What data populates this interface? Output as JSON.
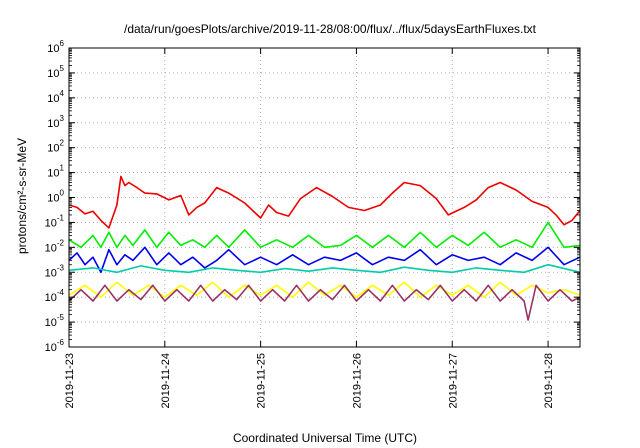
{
  "chart_data": {
    "type": "line",
    "title": "/data/run/goesPlots/archive/2019-11-28/08:00/flux/../flux/5daysEarthFluxes.txt",
    "xlabel": "Coordinated Universal Time (UTC)",
    "ylabel": "protons/cm²-s-sr-MeV",
    "yscale": "log",
    "ylim": [
      1e-06,
      1000000.0
    ],
    "ytick_exponents": [
      -6,
      -5,
      -4,
      -3,
      -2,
      -1,
      0,
      1,
      2,
      3,
      4,
      5,
      6
    ],
    "xlim": [
      "2019-11-23T00:00",
      "2019-11-28T08:00"
    ],
    "xticks": [
      {
        "t": "2019-11-23T00:00",
        "label": "2019-11-23"
      },
      {
        "t": "2019-11-24T00:00",
        "label": "2019-11-24"
      },
      {
        "t": "2019-11-25T00:00",
        "label": "2019-11-25"
      },
      {
        "t": "2019-11-26T00:00",
        "label": "2019-11-26"
      },
      {
        "t": "2019-11-27T00:00",
        "label": "2019-11-27"
      },
      {
        "t": "2019-11-28T00:00",
        "label": "2019-11-28"
      }
    ],
    "grid": true,
    "series": [
      {
        "color": "#ee0000",
        "x": [
          "2019-11-23T00:00",
          "2019-11-23T02:00",
          "2019-11-23T04:00",
          "2019-11-23T06:00",
          "2019-11-23T08:00",
          "2019-11-23T10:00",
          "2019-11-23T12:00",
          "2019-11-23T13:00",
          "2019-11-23T14:00",
          "2019-11-23T15:00",
          "2019-11-23T17:00",
          "2019-11-23T19:00",
          "2019-11-23T22:00",
          "2019-11-24T01:00",
          "2019-11-24T04:00",
          "2019-11-24T06:00",
          "2019-11-24T08:00",
          "2019-11-24T10:00",
          "2019-11-24T13:00",
          "2019-11-24T16:00",
          "2019-11-24T20:00",
          "2019-11-25T00:00",
          "2019-11-25T02:00",
          "2019-11-25T04:00",
          "2019-11-25T07:00",
          "2019-11-25T10:00",
          "2019-11-25T14:00",
          "2019-11-25T18:00",
          "2019-11-25T22:00",
          "2019-11-26T02:00",
          "2019-11-26T06:00",
          "2019-11-26T09:00",
          "2019-11-26T12:00",
          "2019-11-26T16:00",
          "2019-11-26T20:00",
          "2019-11-26T23:00",
          "2019-11-27T03:00",
          "2019-11-27T06:00",
          "2019-11-27T09:00",
          "2019-11-27T12:00",
          "2019-11-27T16:00",
          "2019-11-27T20:00",
          "2019-11-28T00:00",
          "2019-11-28T02:00",
          "2019-11-28T04:00",
          "2019-11-28T06:00",
          "2019-11-28T08:00"
        ],
        "values": [
          0.5,
          0.4,
          0.22,
          0.28,
          0.12,
          0.06,
          0.5,
          7,
          3,
          4,
          2.5,
          1.5,
          1.4,
          0.8,
          1.2,
          0.2,
          0.4,
          0.6,
          2.5,
          1.5,
          0.6,
          0.15,
          0.5,
          0.25,
          0.18,
          0.9,
          2.5,
          1.1,
          0.4,
          0.3,
          0.5,
          1.5,
          4,
          3,
          0.9,
          0.2,
          0.4,
          0.8,
          2.5,
          4,
          2.0,
          0.7,
          0.4,
          0.2,
          0.08,
          0.12,
          0.3
        ]
      },
      {
        "color": "#00ee00",
        "x": [
          "2019-11-23T00:00",
          "2019-11-23T03:00",
          "2019-11-23T06:00",
          "2019-11-23T08:00",
          "2019-11-23T10:00",
          "2019-11-23T12:00",
          "2019-11-23T14:00",
          "2019-11-23T16:00",
          "2019-11-23T19:00",
          "2019-11-23T22:00",
          "2019-11-24T01:00",
          "2019-11-24T04:00",
          "2019-11-24T07:00",
          "2019-11-24T10:00",
          "2019-11-24T13:00",
          "2019-11-24T16:00",
          "2019-11-24T20:00",
          "2019-11-25T00:00",
          "2019-11-25T04:00",
          "2019-11-25T08:00",
          "2019-11-25T12:00",
          "2019-11-25T16:00",
          "2019-11-25T20:00",
          "2019-11-26T00:00",
          "2019-11-26T04:00",
          "2019-11-26T08:00",
          "2019-11-26T12:00",
          "2019-11-26T16:00",
          "2019-11-26T20:00",
          "2019-11-27T00:00",
          "2019-11-27T04:00",
          "2019-11-27T08:00",
          "2019-11-27T12:00",
          "2019-11-27T16:00",
          "2019-11-27T20:00",
          "2019-11-28T00:00",
          "2019-11-28T04:00",
          "2019-11-28T08:00"
        ],
        "values": [
          0.02,
          0.01,
          0.03,
          0.01,
          0.04,
          0.01,
          0.03,
          0.012,
          0.05,
          0.01,
          0.04,
          0.012,
          0.02,
          0.01,
          0.03,
          0.01,
          0.05,
          0.01,
          0.02,
          0.01,
          0.03,
          0.01,
          0.012,
          0.03,
          0.01,
          0.03,
          0.01,
          0.04,
          0.01,
          0.03,
          0.012,
          0.04,
          0.01,
          0.02,
          0.01,
          0.1,
          0.01,
          0.012
        ]
      },
      {
        "color": "#0000ee",
        "x": [
          "2019-11-23T00:00",
          "2019-11-23T02:00",
          "2019-11-23T04:00",
          "2019-11-23T06:00",
          "2019-11-23T08:00",
          "2019-11-23T10:00",
          "2019-11-23T12:00",
          "2019-11-23T14:00",
          "2019-11-23T16:00",
          "2019-11-23T19:00",
          "2019-11-23T22:00",
          "2019-11-24T01:00",
          "2019-11-24T04:00",
          "2019-11-24T07:00",
          "2019-11-24T10:00",
          "2019-11-24T13:00",
          "2019-11-24T16:00",
          "2019-11-24T20:00",
          "2019-11-25T00:00",
          "2019-11-25T04:00",
          "2019-11-25T08:00",
          "2019-11-25T12:00",
          "2019-11-25T16:00",
          "2019-11-25T20:00",
          "2019-11-26T00:00",
          "2019-11-26T04:00",
          "2019-11-26T08:00",
          "2019-11-26T12:00",
          "2019-11-26T16:00",
          "2019-11-26T20:00",
          "2019-11-27T00:00",
          "2019-11-27T04:00",
          "2019-11-27T08:00",
          "2019-11-27T12:00",
          "2019-11-27T16:00",
          "2019-11-27T20:00",
          "2019-11-28T00:00",
          "2019-11-28T04:00",
          "2019-11-28T08:00"
        ],
        "values": [
          0.003,
          0.006,
          0.002,
          0.004,
          0.001,
          0.008,
          0.002,
          0.005,
          0.003,
          0.01,
          0.002,
          0.006,
          0.002,
          0.004,
          0.0015,
          0.003,
          0.008,
          0.002,
          0.004,
          0.002,
          0.005,
          0.002,
          0.004,
          0.003,
          0.006,
          0.002,
          0.004,
          0.003,
          0.008,
          0.002,
          0.005,
          0.003,
          0.004,
          0.002,
          0.006,
          0.003,
          0.01,
          0.002,
          0.004
        ]
      },
      {
        "color": "#00ccaa",
        "x": [
          "2019-11-23T00:00",
          "2019-11-23T06:00",
          "2019-11-23T12:00",
          "2019-11-23T18:00",
          "2019-11-24T00:00",
          "2019-11-24T06:00",
          "2019-11-24T12:00",
          "2019-11-24T18:00",
          "2019-11-25T00:00",
          "2019-11-25T06:00",
          "2019-11-25T12:00",
          "2019-11-25T18:00",
          "2019-11-26T00:00",
          "2019-11-26T06:00",
          "2019-11-26T12:00",
          "2019-11-26T18:00",
          "2019-11-27T00:00",
          "2019-11-27T06:00",
          "2019-11-27T12:00",
          "2019-11-27T18:00",
          "2019-11-28T00:00",
          "2019-11-28T08:00"
        ],
        "values": [
          0.0012,
          0.0015,
          0.001,
          0.0018,
          0.0012,
          0.001,
          0.0015,
          0.0012,
          0.001,
          0.0014,
          0.0011,
          0.0015,
          0.0012,
          0.001,
          0.0016,
          0.0012,
          0.001,
          0.0015,
          0.0012,
          0.001,
          0.002,
          0.001
        ]
      },
      {
        "color": "#ffff00",
        "x": [
          "2019-11-23T00:00",
          "2019-11-23T04:00",
          "2019-11-23T08:00",
          "2019-11-23T12:00",
          "2019-11-23T16:00",
          "2019-11-23T20:00",
          "2019-11-24T00:00",
          "2019-11-24T04:00",
          "2019-11-24T08:00",
          "2019-11-24T12:00",
          "2019-11-24T16:00",
          "2019-11-24T20:00",
          "2019-11-25T00:00",
          "2019-11-25T04:00",
          "2019-11-25T08:00",
          "2019-11-25T12:00",
          "2019-11-25T16:00",
          "2019-11-25T20:00",
          "2019-11-26T00:00",
          "2019-11-26T04:00",
          "2019-11-26T08:00",
          "2019-11-26T12:00",
          "2019-11-26T16:00",
          "2019-11-26T20:00",
          "2019-11-27T00:00",
          "2019-11-27T04:00",
          "2019-11-27T08:00",
          "2019-11-27T12:00",
          "2019-11-27T16:00",
          "2019-11-27T20:00",
          "2019-11-28T00:00",
          "2019-11-28T04:00",
          "2019-11-28T08:00"
        ],
        "values": [
          0.00012,
          0.0003,
          0.0001,
          0.0004,
          0.00012,
          0.0003,
          0.0001,
          0.0003,
          0.00012,
          0.0004,
          0.0001,
          0.0003,
          0.00012,
          0.0003,
          0.0001,
          0.0004,
          0.00012,
          0.0003,
          0.0001,
          0.0003,
          0.00012,
          0.0004,
          0.0001,
          0.0003,
          0.00012,
          0.0003,
          0.0001,
          0.0004,
          0.00012,
          0.0003,
          0.00015,
          0.0002,
          0.00012
        ]
      },
      {
        "color": "#993366",
        "x": [
          "2019-11-23T00:00",
          "2019-11-23T03:00",
          "2019-11-23T06:00",
          "2019-11-23T09:00",
          "2019-11-23T12:00",
          "2019-11-23T15:00",
          "2019-11-23T18:00",
          "2019-11-23T21:00",
          "2019-11-24T00:00",
          "2019-11-24T03:00",
          "2019-11-24T06:00",
          "2019-11-24T09:00",
          "2019-11-24T12:00",
          "2019-11-24T15:00",
          "2019-11-24T18:00",
          "2019-11-24T21:00",
          "2019-11-25T00:00",
          "2019-11-25T03:00",
          "2019-11-25T06:00",
          "2019-11-25T09:00",
          "2019-11-25T12:00",
          "2019-11-25T15:00",
          "2019-11-25T18:00",
          "2019-11-25T21:00",
          "2019-11-26T00:00",
          "2019-11-26T03:00",
          "2019-11-26T06:00",
          "2019-11-26T09:00",
          "2019-11-26T12:00",
          "2019-11-26T15:00",
          "2019-11-26T18:00",
          "2019-11-26T21:00",
          "2019-11-27T00:00",
          "2019-11-27T03:00",
          "2019-11-27T06:00",
          "2019-11-27T09:00",
          "2019-11-27T12:00",
          "2019-11-27T15:00",
          "2019-11-27T18:00",
          "2019-11-27T19:00",
          "2019-11-27T21:00",
          "2019-11-28T00:00",
          "2019-11-28T03:00",
          "2019-11-28T06:00",
          "2019-11-28T08:00"
        ],
        "values": [
          7e-05,
          0.0002,
          7e-05,
          0.0003,
          7e-05,
          0.0002,
          8e-05,
          0.0003,
          7e-05,
          0.0002,
          7e-05,
          0.0003,
          7e-05,
          0.0002,
          8e-05,
          0.0003,
          7e-05,
          0.0002,
          7e-05,
          0.0003,
          7e-05,
          0.0002,
          8e-05,
          0.0003,
          7e-05,
          0.0002,
          7e-05,
          0.0003,
          7e-05,
          0.0002,
          8e-05,
          0.0003,
          7e-05,
          0.0002,
          7e-05,
          0.0003,
          7e-05,
          0.0002,
          7e-05,
          1.2e-05,
          0.0003,
          7e-05,
          0.0002,
          7e-05,
          0.0001
        ]
      }
    ]
  }
}
